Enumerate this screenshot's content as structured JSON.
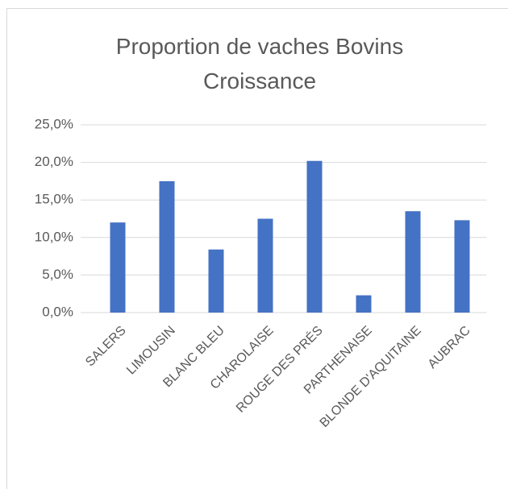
{
  "chart_data": {
    "type": "bar",
    "title": "Proportion de vaches Bovins Croissance",
    "categories": [
      "SALERS",
      "LIMOUSIN",
      "BLANC BLEU",
      "CHAROLAISE",
      "ROUGE DES PRÉS",
      "PARTHENAISE",
      "BLONDE D'AQUITAINE",
      "AUBRAC"
    ],
    "values": [
      12.0,
      17.5,
      8.4,
      12.5,
      20.2,
      2.3,
      13.5,
      12.3
    ],
    "color": "#4472c4",
    "ylim": [
      0,
      25
    ],
    "yticks": [
      {
        "value": 0,
        "label": "0,0%"
      },
      {
        "value": 5,
        "label": "5,0%"
      },
      {
        "value": 10,
        "label": "10,0%"
      },
      {
        "value": 15,
        "label": "15,0%"
      },
      {
        "value": 20,
        "label": "20,0%"
      },
      {
        "value": 25,
        "label": "25,0%"
      }
    ],
    "grid": true
  }
}
